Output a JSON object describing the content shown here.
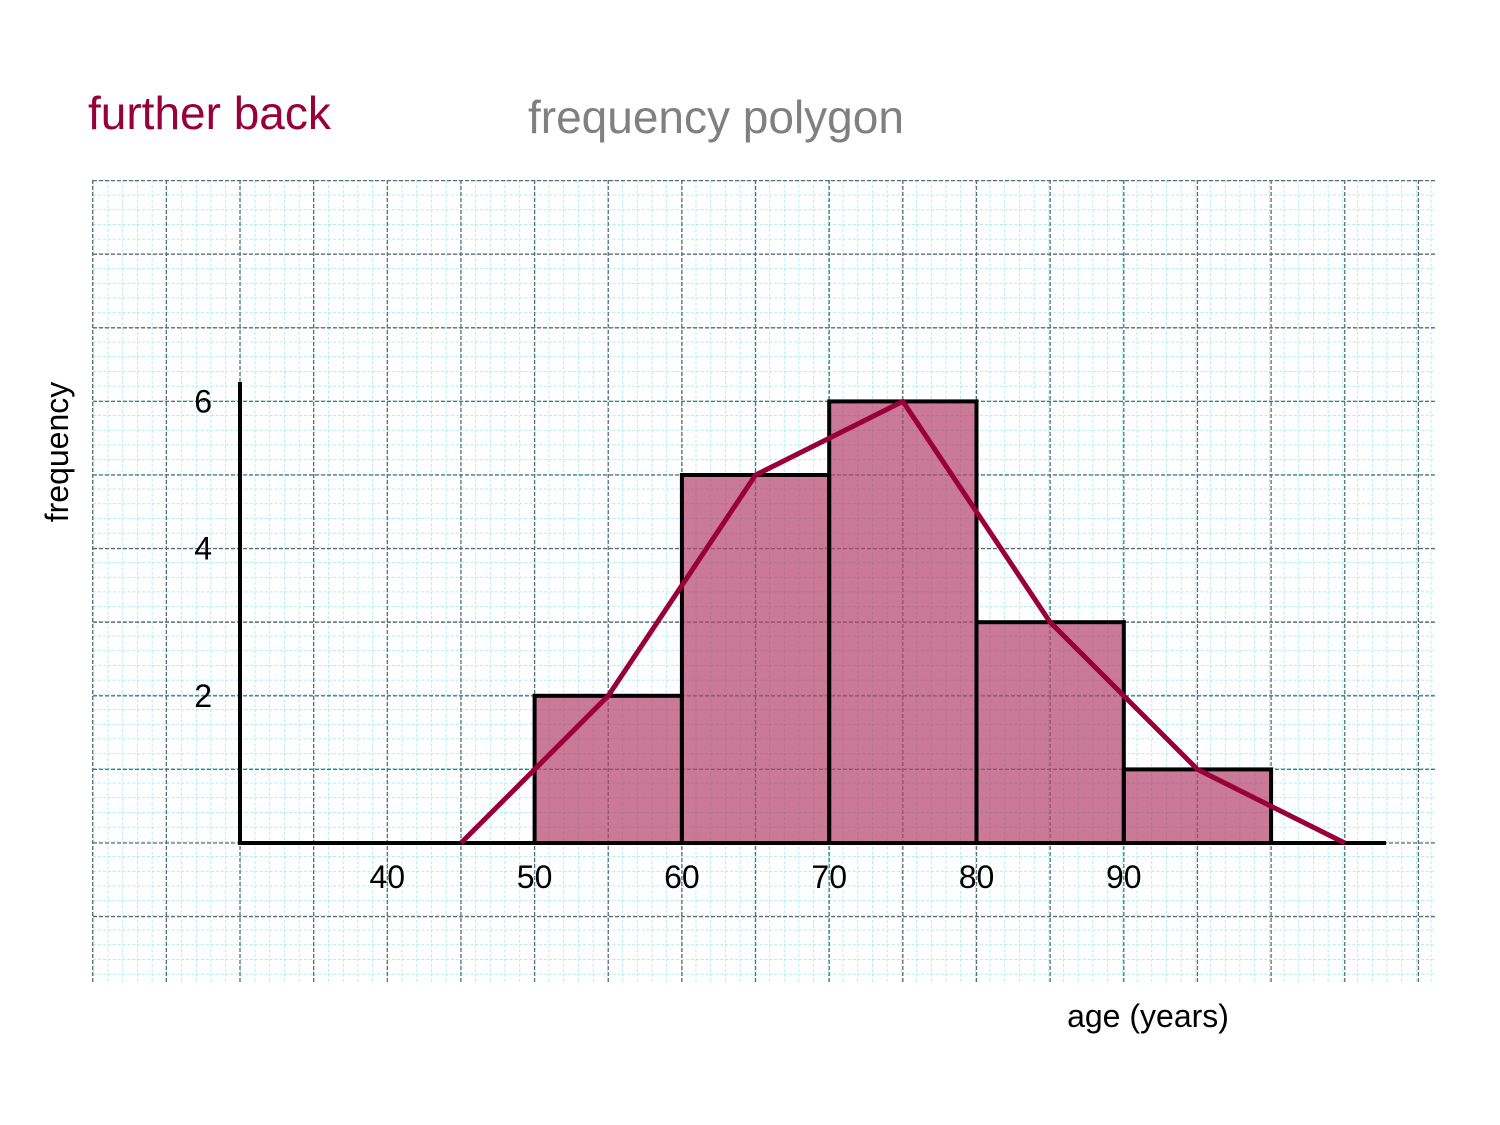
{
  "header": {
    "back_label": "further back",
    "title": "frequency polygon"
  },
  "colors": {
    "accent": "#99003a",
    "bar_fill": "#b5456e",
    "grid_fine": "#7fe0e8",
    "grid_major": "#5a6e78",
    "title_gray": "#808080"
  },
  "chart_data": {
    "type": "bar",
    "subtype": "histogram with frequency polygon",
    "xlabel": "age (years)",
    "ylabel": "frequency",
    "xlim": [
      30,
      105
    ],
    "ylim": [
      0,
      6.4
    ],
    "x_ticks": [
      40,
      50,
      60,
      70,
      80,
      90
    ],
    "y_ticks": [
      2,
      4,
      6
    ],
    "grid": true,
    "bins": [
      {
        "start": 50,
        "end": 60,
        "value": 2
      },
      {
        "start": 60,
        "end": 70,
        "value": 5
      },
      {
        "start": 70,
        "end": 80,
        "value": 6
      },
      {
        "start": 80,
        "end": 90,
        "value": 3
      },
      {
        "start": 90,
        "end": 100,
        "value": 1
      }
    ],
    "polygon": {
      "x": [
        45,
        55,
        65,
        75,
        85,
        95,
        105
      ],
      "y": [
        0,
        2,
        5,
        6,
        3,
        1,
        0
      ]
    }
  }
}
